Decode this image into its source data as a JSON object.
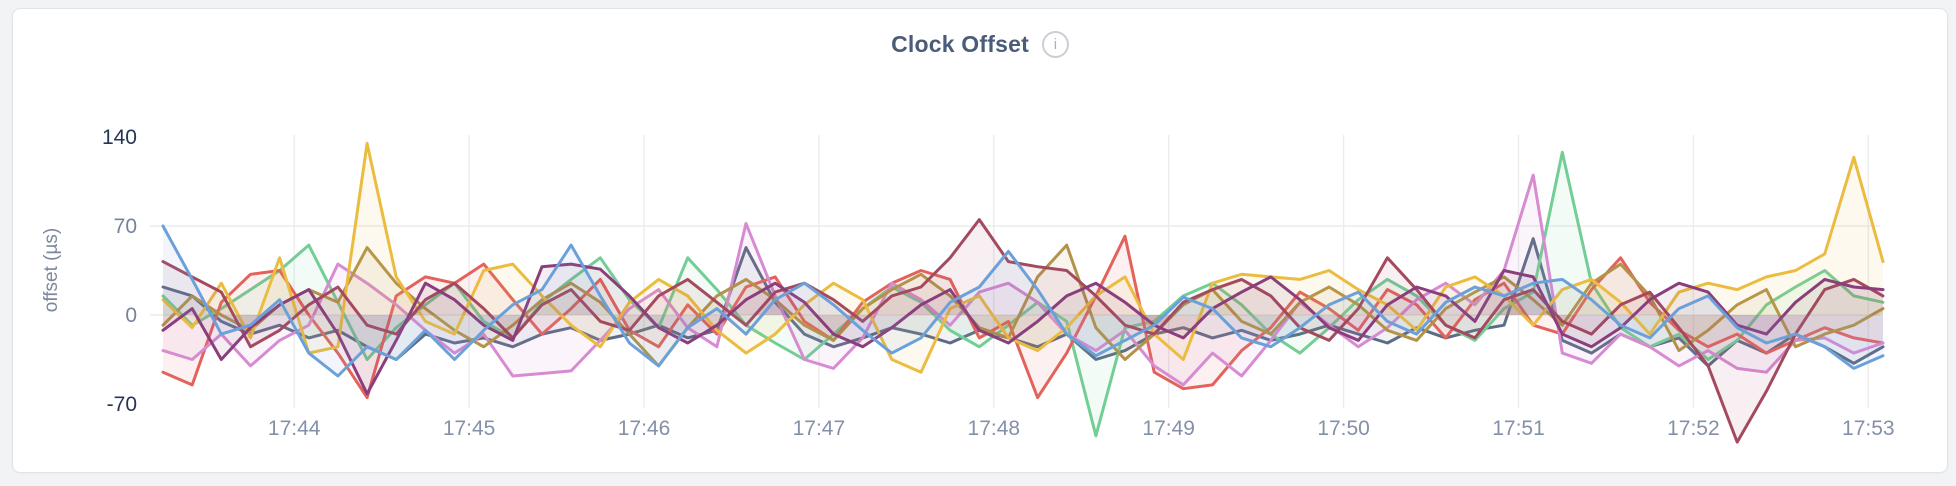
{
  "page": {
    "background_color": "#f2f3f4",
    "card_background": "#ffffff",
    "card_border_color": "#e1e3e6"
  },
  "header": {
    "title": "Clock Offset",
    "info_icon": "i",
    "title_color": "#4a5c78",
    "info_icon_color": "#acb1b8"
  },
  "chart_data": {
    "type": "line",
    "title": "Clock Offset",
    "xlabel": "",
    "ylabel": "offset (µs)",
    "ylabel_color": "#7c889d",
    "ylim": [
      -70,
      140
    ],
    "grid": true,
    "legend": "none",
    "grid_color": "#ececec",
    "x_start": "17:43:15",
    "x_interval_seconds": 10,
    "x_ticks": [
      "17:44",
      "17:45",
      "17:46",
      "17:47",
      "17:48",
      "17:49",
      "17:50",
      "17:51",
      "17:52",
      "17:53"
    ],
    "x_tick_color": "#8490a8",
    "y_ticks": [
      {
        "label": "140",
        "value": 140,
        "color": "#263554"
      },
      {
        "label": "70",
        "value": 70,
        "color": "#76839b"
      },
      {
        "label": "0",
        "value": 0,
        "color": "#76839b"
      },
      {
        "label": "-70",
        "value": -70,
        "color": "#263554"
      }
    ],
    "y_grid_values": [
      70,
      0
    ],
    "fill_opacity": 0.09,
    "line_width": 3,
    "series": [
      {
        "name": "s9-slate",
        "color": "#5c6b86",
        "values": [
          22,
          15,
          -5,
          -15,
          -8,
          -18,
          -12,
          -25,
          -35,
          -15,
          -22,
          -18,
          -25,
          -15,
          -10,
          -20,
          -15,
          -8,
          -18,
          -12,
          53,
          10,
          -15,
          -25,
          -18,
          -10,
          -15,
          -22,
          -12,
          -18,
          -25,
          -15,
          -35,
          -28,
          -15,
          -10,
          -18,
          -12,
          -20,
          -15,
          -8,
          -15,
          -22,
          -10,
          -18,
          -12,
          -8,
          60,
          -20,
          -30,
          -15,
          -25,
          -18,
          -40,
          -20,
          -30,
          -15,
          -25,
          -38,
          -25
        ]
      },
      {
        "name": "s4-green",
        "color": "#72ce95",
        "values": [
          15,
          -8,
          5,
          20,
          35,
          55,
          10,
          -35,
          -10,
          8,
          25,
          -5,
          -18,
          10,
          28,
          45,
          12,
          -10,
          45,
          20,
          -8,
          -22,
          -35,
          -15,
          5,
          22,
          10,
          -12,
          -25,
          -8,
          10,
          -5,
          -95,
          -10,
          -5,
          15,
          25,
          8,
          -15,
          -30,
          -10,
          12,
          28,
          15,
          -8,
          -20,
          5,
          18,
          128,
          25,
          -10,
          -25,
          -15,
          -35,
          -20,
          8,
          22,
          35,
          15,
          10
        ]
      },
      {
        "name": "s2-salmon",
        "color": "#e3625c",
        "values": [
          -45,
          -55,
          10,
          32,
          35,
          0,
          -30,
          -65,
          15,
          30,
          25,
          40,
          12,
          -15,
          5,
          28,
          -12,
          -25,
          8,
          -15,
          22,
          30,
          -5,
          -20,
          10,
          25,
          35,
          28,
          -18,
          -5,
          -65,
          -30,
          15,
          62,
          -45,
          -58,
          -55,
          -28,
          -10,
          18,
          5,
          -12,
          20,
          8,
          -18,
          12,
          25,
          -8,
          -15,
          20,
          45,
          10,
          -12,
          -25,
          -15,
          -30,
          -20,
          -10,
          -18,
          -22
        ]
      },
      {
        "name": "s5-orchid",
        "color": "#d78bd2",
        "values": [
          -28,
          -35,
          -15,
          -40,
          -20,
          -8,
          40,
          25,
          8,
          -12,
          -30,
          -15,
          -48,
          -46,
          -44,
          -20,
          5,
          20,
          -10,
          -25,
          72,
          15,
          -35,
          -42,
          -18,
          25,
          12,
          -8,
          18,
          25,
          10,
          -15,
          -28,
          -12,
          -40,
          -55,
          -30,
          -48,
          -20,
          10,
          -8,
          -25,
          -10,
          12,
          25,
          8,
          35,
          110,
          -30,
          -38,
          -15,
          -25,
          -40,
          -28,
          -42,
          -45,
          -20,
          -18,
          -30,
          -22
        ]
      },
      {
        "name": "s8-khaki",
        "color": "#b29349",
        "values": [
          -8,
          15,
          0,
          -12,
          8,
          20,
          10,
          53,
          25,
          5,
          -12,
          -25,
          -8,
          12,
          25,
          10,
          -15,
          -40,
          -10,
          15,
          28,
          12,
          -8,
          -20,
          5,
          20,
          32,
          15,
          -10,
          -18,
          30,
          55,
          -10,
          -35,
          -15,
          8,
          20,
          -5,
          -15,
          10,
          22,
          8,
          -12,
          -20,
          5,
          18,
          30,
          12,
          -8,
          25,
          40,
          15,
          -28,
          -12,
          8,
          20,
          -25,
          -15,
          -8,
          5
        ]
      },
      {
        "name": "s3-gold",
        "color": "#ebbc40",
        "values": [
          12,
          -10,
          25,
          -18,
          45,
          -30,
          -25,
          135,
          30,
          -5,
          -15,
          35,
          40,
          15,
          -8,
          -25,
          10,
          28,
          15,
          -12,
          -30,
          -15,
          8,
          25,
          12,
          -35,
          -45,
          5,
          15,
          -18,
          -28,
          -10,
          15,
          30,
          -15,
          -35,
          25,
          32,
          30,
          28,
          35,
          20,
          8,
          -12,
          22,
          30,
          15,
          -8,
          20,
          28,
          10,
          -15,
          18,
          25,
          20,
          30,
          35,
          48,
          124,
          42
        ]
      },
      {
        "name": "s6-wine",
        "color": "#a44a5f",
        "values": [
          42,
          30,
          18,
          -25,
          -12,
          8,
          22,
          -8,
          -15,
          12,
          25,
          5,
          -18,
          8,
          20,
          -5,
          -12,
          15,
          28,
          10,
          -8,
          18,
          25,
          12,
          -5,
          15,
          22,
          45,
          75,
          42,
          38,
          35,
          15,
          -8,
          -15,
          10,
          20,
          28,
          15,
          -10,
          -20,
          5,
          45,
          20,
          -8,
          -18,
          12,
          20,
          -5,
          -15,
          8,
          18,
          -10,
          -40,
          -100,
          -60,
          -15,
          20,
          28,
          15
        ]
      },
      {
        "name": "s7-plum",
        "color": "#8a3e7c",
        "values": [
          -12,
          5,
          -35,
          -10,
          8,
          20,
          -15,
          -62,
          -20,
          25,
          12,
          -8,
          -20,
          38,
          40,
          36,
          15,
          -10,
          -22,
          -8,
          12,
          25,
          10,
          -15,
          -25,
          -10,
          8,
          20,
          -12,
          -22,
          -5,
          15,
          25,
          10,
          -8,
          -18,
          5,
          18,
          30,
          12,
          -10,
          -20,
          8,
          22,
          15,
          -5,
          35,
          30,
          -15,
          -25,
          -10,
          12,
          25,
          18,
          -8,
          -15,
          10,
          28,
          22,
          20
        ]
      },
      {
        "name": "s1-blue",
        "color": "#6ca0d9",
        "values": [
          70,
          28,
          -15,
          -8,
          12,
          -30,
          -48,
          -25,
          -35,
          -12,
          -35,
          -12,
          8,
          20,
          55,
          15,
          -22,
          -40,
          -10,
          5,
          -15,
          12,
          25,
          8,
          -12,
          -30,
          -18,
          10,
          22,
          50,
          20,
          -15,
          -32,
          -20,
          -8,
          14,
          5,
          -18,
          -25,
          -10,
          8,
          18,
          -5,
          -15,
          10,
          22,
          15,
          25,
          28,
          12,
          -8,
          -18,
          5,
          15,
          -10,
          -22,
          -15,
          -25,
          -42,
          -32
        ]
      }
    ]
  }
}
